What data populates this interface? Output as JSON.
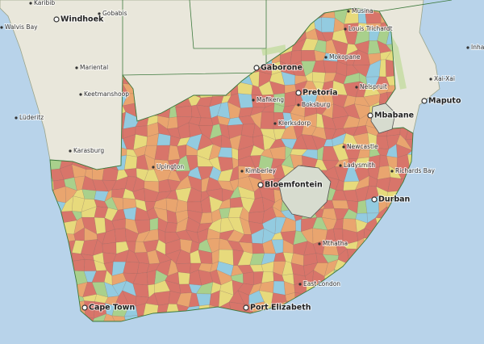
{
  "places": [
    {
      "name": "Windhoek"
    },
    {
      "name": "Karibib"
    },
    {
      "name": "Gobabis"
    },
    {
      "name": "Walvis Bay"
    },
    {
      "name": "Mariental"
    },
    {
      "name": "Keetmanshoop"
    },
    {
      "name": "Lüderitz"
    },
    {
      "name": "Karasburg"
    },
    {
      "name": "Upington"
    },
    {
      "name": "Gaborone"
    },
    {
      "name": "Musina"
    },
    {
      "name": "Louis Trichardt"
    },
    {
      "name": "Mokopane"
    },
    {
      "name": "Pretoria"
    },
    {
      "name": "Boksburg"
    },
    {
      "name": "Mafikeng"
    },
    {
      "name": "Klerksdorp"
    },
    {
      "name": "Nelspruit"
    },
    {
      "name": "Mbabane"
    },
    {
      "name": "Maputo"
    },
    {
      "name": "Xai-Xai"
    },
    {
      "name": "Inham"
    },
    {
      "name": "Newcastle"
    },
    {
      "name": "Ladysmith"
    },
    {
      "name": "Richards Bay"
    },
    {
      "name": "Kimberley"
    },
    {
      "name": "Bloemfontein"
    },
    {
      "name": "Durban"
    },
    {
      "name": "Mthatha"
    },
    {
      "name": "East London"
    },
    {
      "name": "Port Elizabeth"
    },
    {
      "name": "Cape Town"
    }
  ]
}
